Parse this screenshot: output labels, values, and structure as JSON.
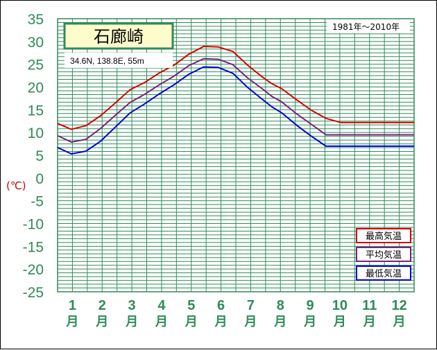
{
  "chart_data": {
    "type": "line",
    "station": "石廊崎",
    "coords": "34.6N,  138.8E,  55m",
    "period": "1981年〜2010年",
    "ylabel": "(℃)",
    "ylim": [
      -25,
      35
    ],
    "yticks": [
      35,
      30,
      25,
      20,
      15,
      10,
      5,
      0,
      -5,
      -10,
      -15,
      -20,
      -25
    ],
    "months": [
      "1",
      "2",
      "3",
      "4",
      "5",
      "6",
      "7",
      "8",
      "9",
      "10",
      "11",
      "12"
    ],
    "month_suffix": "月",
    "x_days": [
      1,
      15,
      30,
      45,
      60,
      75,
      90,
      105,
      120,
      135,
      150,
      165,
      180,
      195,
      210,
      220,
      230,
      245,
      260,
      275,
      290,
      305,
      320,
      335,
      350,
      365
    ],
    "series": [
      {
        "name": "最高気温",
        "color": "#d40000",
        "values": [
          12.0,
          10.7,
          11.5,
          13.7,
          16.5,
          19.4,
          21.0,
          23.1,
          24.8,
          27.2,
          28.9,
          28.8,
          27.8,
          24.8,
          22.2,
          20.7,
          19.6,
          17.2,
          14.9,
          13.1,
          12.2,
          12.2,
          12.2,
          12.2,
          12.2,
          12.2
        ]
      },
      {
        "name": "平均気温",
        "color": "#7b1f7b",
        "values": [
          9.3,
          7.9,
          8.5,
          10.9,
          13.8,
          16.6,
          18.4,
          20.5,
          22.4,
          24.7,
          26.2,
          26.1,
          24.9,
          22.0,
          19.6,
          17.9,
          16.7,
          14.1,
          11.8,
          9.5,
          9.5,
          9.5,
          9.5,
          9.5,
          9.5,
          9.5
        ]
      },
      {
        "name": "最低気温",
        "color": "#0000d8",
        "values": [
          6.7,
          5.3,
          5.9,
          8.1,
          11.2,
          14.3,
          16.3,
          18.5,
          20.5,
          22.8,
          24.4,
          24.3,
          23.0,
          19.9,
          17.3,
          15.6,
          14.3,
          11.6,
          9.2,
          7.0,
          7.0,
          7.0,
          7.0,
          7.0,
          7.0,
          7.0
        ]
      }
    ],
    "legend": "bottom-right",
    "grid": true
  }
}
